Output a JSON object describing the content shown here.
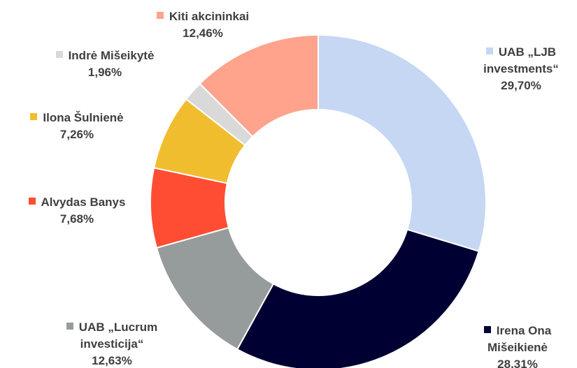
{
  "chart_data": {
    "type": "donut",
    "categories": [
      "UAB „LJB investments“",
      "Irena Ona Mišeikienė",
      "UAB „Lucrum investicija“",
      "Alvydas Banys",
      "Ilona Šulnienė",
      "Indrė Mišeikytė",
      "Kiti akcininkai"
    ],
    "values": [
      29.7,
      28.31,
      12.63,
      7.68,
      7.26,
      1.96,
      12.46
    ],
    "value_labels": [
      "29,70%",
      "28,31%",
      "12,63%",
      "7,68%",
      "7,26%",
      "1,96%",
      "12,46%"
    ],
    "colors": [
      "#c6d7f3",
      "#000033",
      "#969b9b",
      "#ff4d33",
      "#f0bd2f",
      "#d9d9d9",
      "#ffa38d"
    ]
  }
}
